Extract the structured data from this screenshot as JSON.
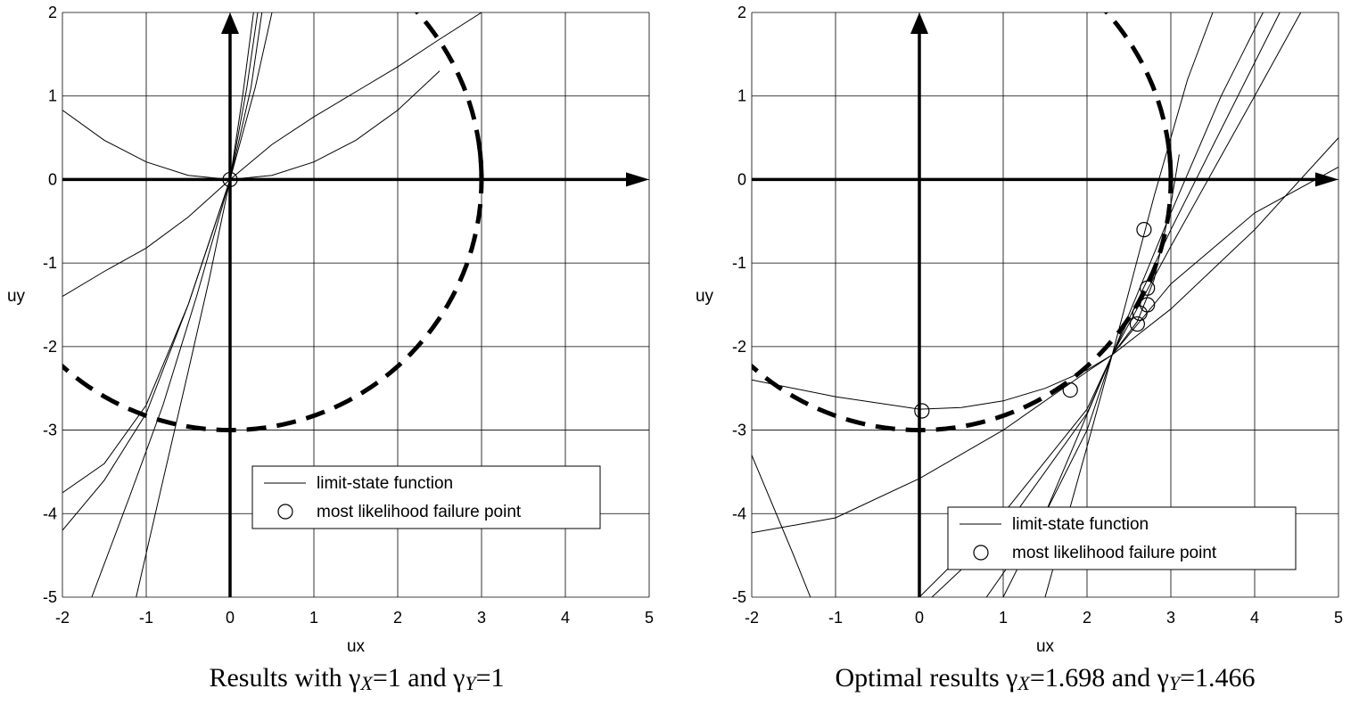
{
  "chart_data": [
    {
      "type": "line",
      "xlabel": "ux",
      "ylabel": "uy",
      "xlim": [
        -2,
        5
      ],
      "ylim": [
        -5,
        2
      ],
      "x_ticks": [
        "-2",
        "-1",
        "0",
        "1",
        "2",
        "3",
        "4",
        "5"
      ],
      "y_ticks": [
        "2",
        "1",
        "0",
        "-1",
        "-2",
        "-3",
        "-4",
        "-5"
      ],
      "grid": true,
      "legend": {
        "placement": "lower-right",
        "entries": [
          "limit-state function",
          "most likelihood failure point"
        ]
      },
      "caption": {
        "prefix": "Results with γ",
        "sub_x": "X",
        "mid": "=1  and γ",
        "sub_y": "Y",
        "suffix": "=1"
      },
      "beta_circle_radius": 3,
      "series": [
        {
          "x": [
            -2,
            -1.5,
            -1,
            -0.5,
            0,
            0.5,
            1,
            1.5,
            2,
            2.5
          ],
          "y": [
            0.83,
            0.47,
            0.21,
            0.05,
            0,
            0.05,
            0.21,
            0.47,
            0.83,
            1.3
          ]
        },
        {
          "x": [
            -2,
            -1.5,
            -1,
            -0.5,
            0,
            0.5,
            1,
            1.5,
            2,
            2.5,
            3
          ],
          "y": [
            -1.4,
            -1.1,
            -0.82,
            -0.45,
            0,
            0.42,
            0.75,
            1.05,
            1.35,
            1.68,
            2.0
          ]
        },
        {
          "x": [
            -2,
            -1.5,
            -1,
            -0.5,
            0,
            0.3,
            0.5
          ],
          "y": [
            -3.75,
            -3.4,
            -2.7,
            -1.5,
            0,
            1.1,
            2.0
          ]
        },
        {
          "x": [
            -2,
            -1.5,
            -1,
            -0.5,
            0,
            0.25,
            0.38
          ],
          "y": [
            -4.2,
            -3.6,
            -2.8,
            -1.5,
            0,
            1.1,
            2.0
          ]
        },
        {
          "x": [
            -1.65,
            -1.2,
            -0.8,
            -0.4,
            0,
            0.2,
            0.33
          ],
          "y": [
            -5,
            -3.8,
            -2.7,
            -1.4,
            0,
            1.1,
            2.0
          ]
        },
        {
          "x": [
            -1.12,
            -0.8,
            -0.5,
            -0.25,
            0,
            0.15,
            0.28
          ],
          "y": [
            -5,
            -3.6,
            -2.3,
            -1.2,
            0,
            1.0,
            2.0
          ]
        }
      ],
      "failure_points": [
        {
          "x": 0,
          "y": 0
        }
      ]
    },
    {
      "type": "line",
      "xlabel": "ux",
      "ylabel": "uy",
      "xlim": [
        -2,
        5
      ],
      "ylim": [
        -5,
        2
      ],
      "x_ticks": [
        "-2",
        "-1",
        "0",
        "1",
        "2",
        "3",
        "4",
        "5"
      ],
      "y_ticks": [
        "2",
        "1",
        "0",
        "-1",
        "-2",
        "-3",
        "-4",
        "-5"
      ],
      "grid": true,
      "legend": {
        "placement": "lower-right",
        "entries": [
          "limit-state function",
          "most likelihood failure point"
        ]
      },
      "caption": {
        "prefix": "Optimal results γ",
        "sub_x": "X",
        "mid": "=1.698  and γ",
        "sub_y": "Y",
        "suffix": "=1.466"
      },
      "beta_circle_radius": 3,
      "series": [
        {
          "x": [
            -2,
            -1,
            0,
            0.5,
            1,
            1.5,
            2,
            2.3,
            2.6,
            2.8,
            3.0,
            3.1
          ],
          "y": [
            -2.4,
            -2.6,
            -2.75,
            -2.73,
            -2.65,
            -2.5,
            -2.28,
            -2.1,
            -1.7,
            -1.2,
            -0.3,
            0.3
          ]
        },
        {
          "x": [
            -2,
            -1,
            0,
            1,
            2,
            2.3,
            3,
            4,
            5
          ],
          "y": [
            -4.23,
            -4.05,
            -3.58,
            -3.0,
            -2.3,
            -2.1,
            -1.55,
            -0.6,
            0.5
          ]
        },
        {
          "x": [
            -2,
            -1.5,
            -1.3
          ],
          "y": [
            -3.3,
            -4.5,
            -5.0
          ]
        },
        {
          "x": [
            0.0,
            1.0,
            2.0,
            2.3,
            3.0,
            4.0,
            4.55
          ],
          "y": [
            -5.0,
            -4.0,
            -2.75,
            -2.1,
            -0.8,
            1.0,
            2.0
          ]
        },
        {
          "x": [
            0.15,
            1.0,
            2.0,
            2.3,
            3.0,
            3.8,
            4.3
          ],
          "y": [
            -5.0,
            -4.2,
            -2.8,
            -2.1,
            -0.6,
            1.0,
            2.0
          ]
        },
        {
          "x": [
            0.8,
            1.5,
            2.3,
            3.0,
            3.6,
            4.1
          ],
          "y": [
            -5.0,
            -4.0,
            -2.1,
            -0.4,
            1.0,
            2.0
          ]
        },
        {
          "x": [
            1.5,
            2.0,
            2.3,
            2.8,
            3.2,
            3.5
          ],
          "y": [
            -5.0,
            -3.2,
            -2.1,
            -0.2,
            1.2,
            2.0
          ]
        },
        {
          "x": [
            1.0,
            2.0,
            2.3,
            3.0,
            4.0,
            5.0
          ],
          "y": [
            -5.0,
            -3.0,
            -2.1,
            -1.25,
            -0.4,
            0.15
          ]
        }
      ],
      "failure_points": [
        {
          "x": 0.03,
          "y": -2.77
        },
        {
          "x": 1.8,
          "y": -2.52
        },
        {
          "x": 2.6,
          "y": -1.73
        },
        {
          "x": 2.63,
          "y": -1.6
        },
        {
          "x": 2.72,
          "y": -1.5
        },
        {
          "x": 2.72,
          "y": -1.3
        },
        {
          "x": 2.68,
          "y": -0.6
        }
      ]
    }
  ]
}
